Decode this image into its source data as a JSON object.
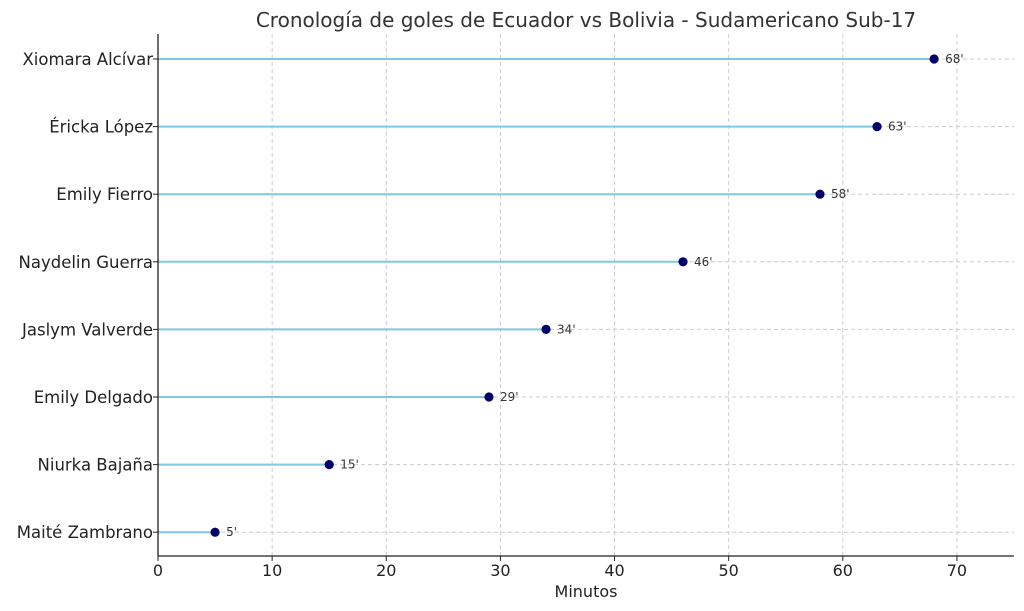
{
  "chart_data": {
    "type": "lollipop",
    "title": "Cronología de goles de Ecuador vs Bolivia - Sudamericano Sub-17",
    "xlabel": "Minutos",
    "ylabel": "",
    "xlim": [
      0,
      75
    ],
    "xticks": [
      0,
      10,
      20,
      30,
      40,
      50,
      60,
      70
    ],
    "grid": true,
    "orientation": "horizontal",
    "categories": [
      "Xiomara Alcívar",
      "Éricka López",
      "Emily Fierro",
      "Naydelin Guerra",
      "Jaslym Valverde",
      "Emily Delgado",
      "Niurka Bajaña",
      "Maité Zambrano"
    ],
    "values": [
      68,
      63,
      58,
      46,
      34,
      29,
      15,
      5
    ],
    "data_labels": [
      "68'",
      "63'",
      "58'",
      "46'",
      "34'",
      "29'",
      "15'",
      "5'"
    ],
    "colors": {
      "stem": "#7ec8e3",
      "marker": "#000066"
    }
  }
}
